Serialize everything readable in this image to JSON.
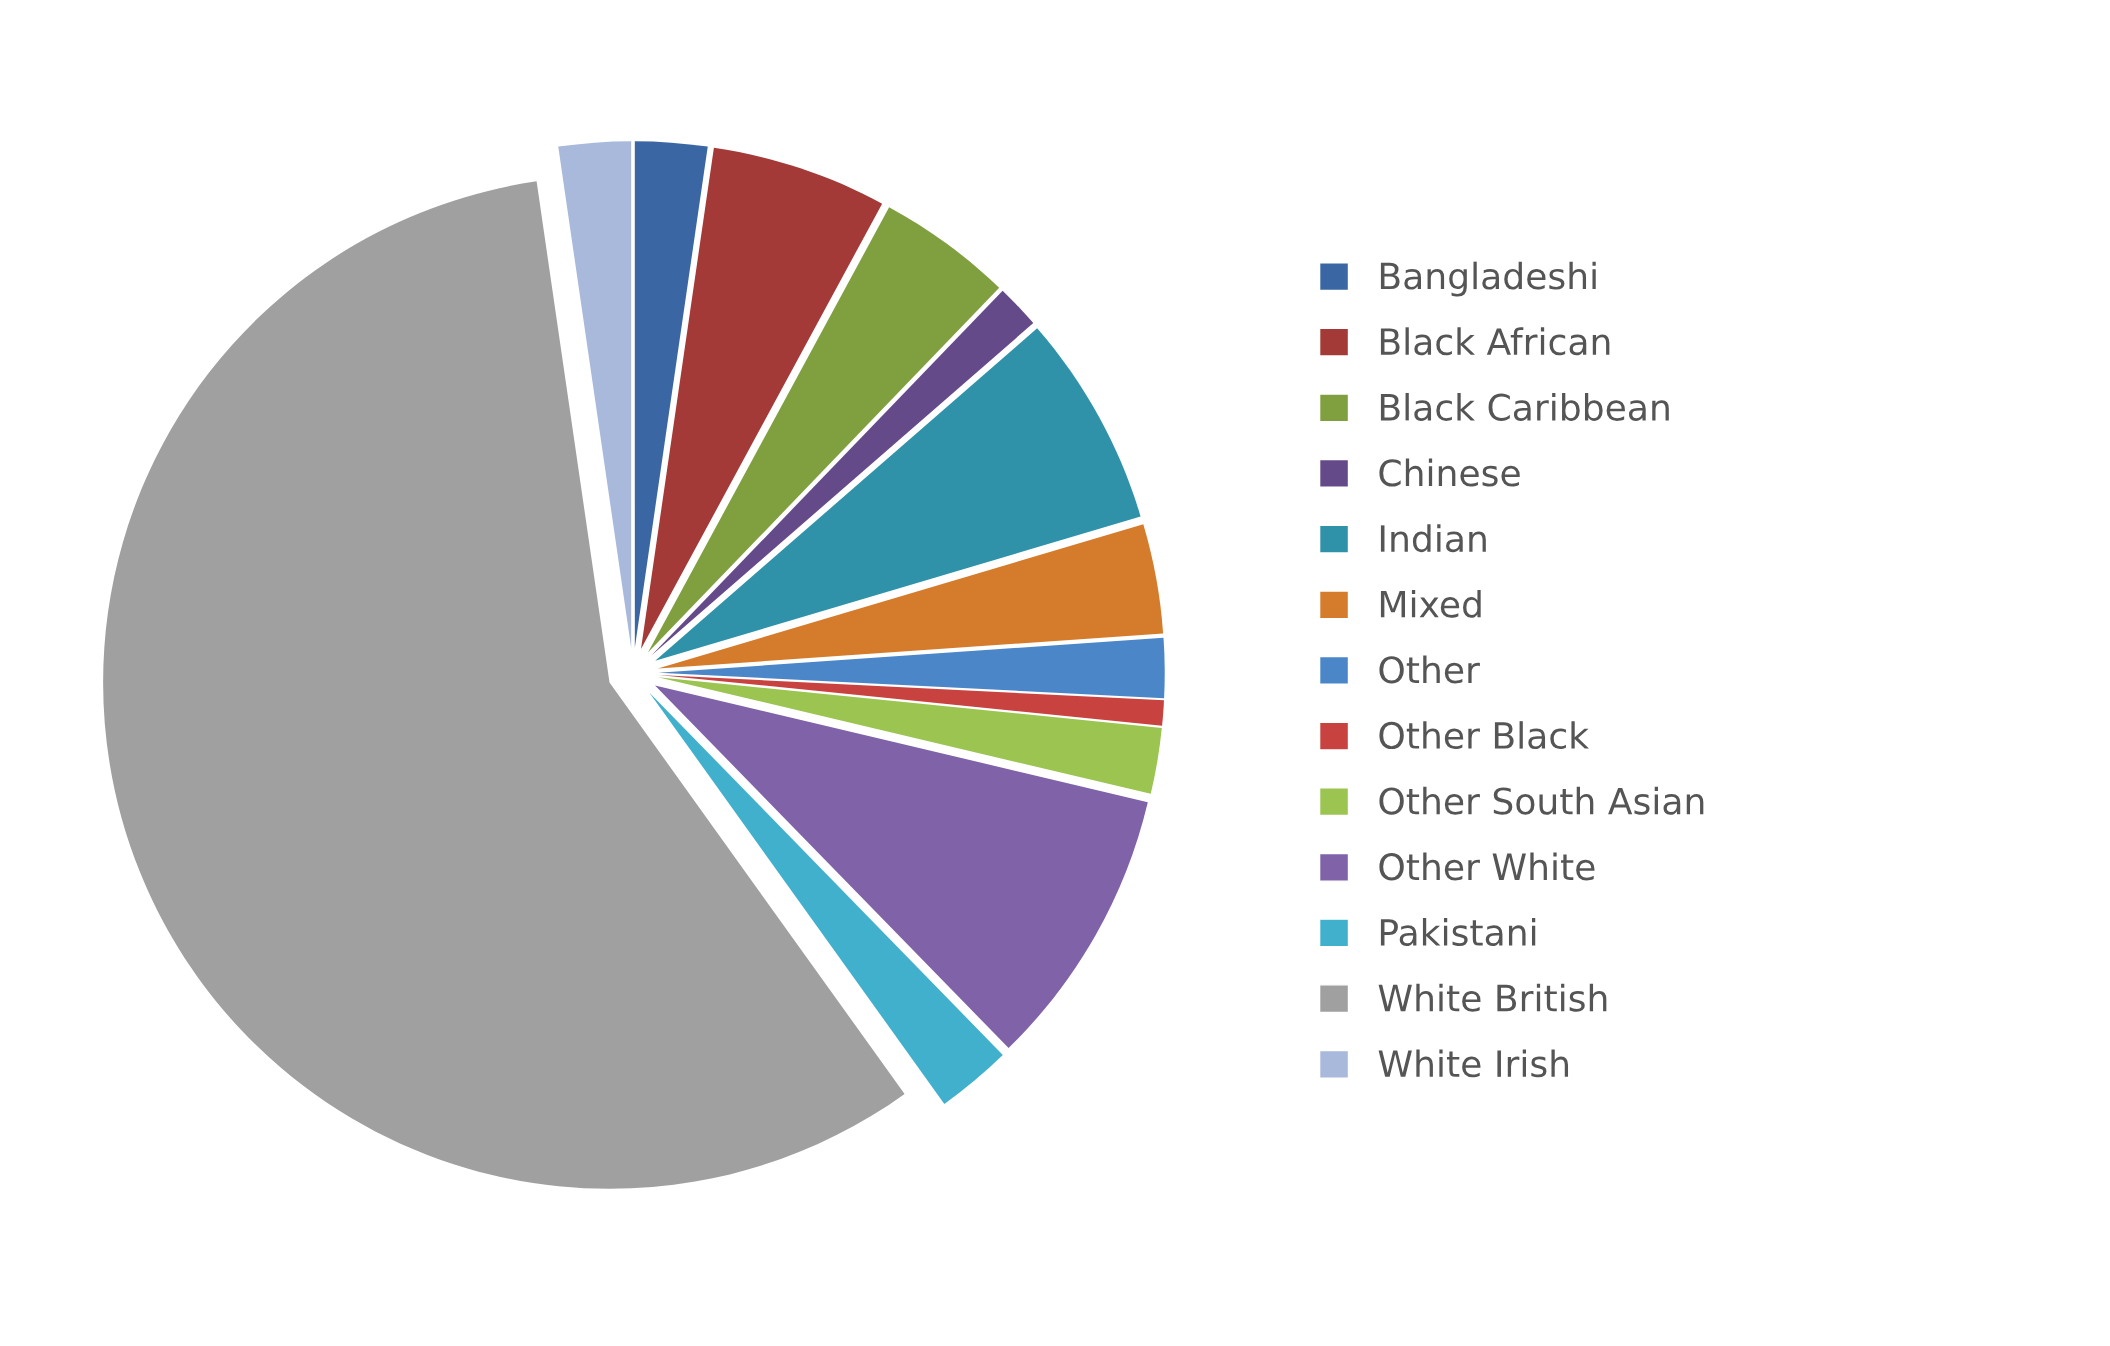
{
  "chart_data": {
    "type": "pie",
    "categories": [
      "Bangladeshi",
      "Black African",
      "Black Caribbean",
      "Chinese",
      "Indian",
      "Mixed",
      "Other",
      "Other Black",
      "Other South Asian",
      "Other White",
      "Pakistani",
      "White British",
      "White Irish"
    ],
    "values": [
      2.3,
      5.6,
      4.3,
      1.4,
      6.8,
      3.5,
      1.9,
      0.8,
      2.1,
      9.0,
      2.4,
      57.6,
      2.3
    ],
    "colors": [
      "#3a67a4",
      "#a33a37",
      "#80a040",
      "#654a8a",
      "#2f92a9",
      "#d57c2c",
      "#4a86c8",
      "#c8423f",
      "#9bc450",
      "#7f62a8",
      "#40b0cc",
      "#a0a0a0",
      "#a9b9dc"
    ],
    "legend": "right"
  }
}
